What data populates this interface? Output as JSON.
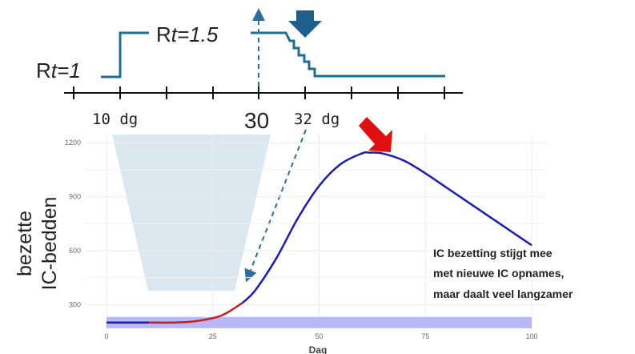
{
  "colors": {
    "rt_line": "#1f6f93",
    "arrow_top": "#1f5f8c",
    "dashed_arrow": "#2a6fa0",
    "curve_blue": "#1c1cb4",
    "curve_red": "#c0201f",
    "capacity_band": "#b8b8f4",
    "funnel": "#dce8f0",
    "red_arrow": "#e01010",
    "grid": "#ebebeb",
    "axis_text": "#6a6a6a",
    "text_dark": "#222222"
  },
  "timeline": {
    "rt1_prefix": "R",
    "rt1_italic": "t=1",
    "rt2_prefix": "R",
    "rt2_italic": "t=1.5",
    "label_10": "10 dg",
    "label_30": "30",
    "label_32": "32 dg"
  },
  "icons": {
    "top_arrow": "down-arrow-icon",
    "red_arrow": "down-arrow-icon"
  },
  "chart_data": {
    "type": "line",
    "ylabel_line1": "bezette",
    "ylabel_line2": "IC-bedden",
    "xlabel": "Dag",
    "xlim": [
      0,
      100
    ],
    "ylim": [
      150,
      1250
    ],
    "x_ticks": [
      0,
      25,
      50,
      75,
      100
    ],
    "x_tick_labels": [
      "0",
      "25",
      "50",
      "75",
      "100"
    ],
    "y_ticks": [
      300,
      600,
      900,
      1200
    ],
    "y_tick_labels": [
      "300",
      "600",
      "900",
      "1200"
    ],
    "capacity_level": 200,
    "annotation": {
      "line1": "IC bezetting stijgt mee",
      "line2": "met nieuwe IC opnames,",
      "line3": "maar daalt veel langzamer"
    },
    "series": [
      {
        "x": [
          0,
          5,
          10
        ],
        "y": [
          200,
          200,
          200
        ]
      },
      {
        "x": [
          10,
          15,
          20,
          25,
          28,
          32
        ],
        "y": [
          200,
          200,
          205,
          225,
          250,
          310
        ]
      },
      {
        "x": [
          32,
          35,
          40,
          45,
          50,
          55,
          60,
          62,
          65,
          70,
          75,
          80,
          85,
          90,
          95,
          100
        ],
        "y": [
          310,
          380,
          560,
          780,
          960,
          1080,
          1140,
          1145,
          1140,
          1100,
          1030,
          950,
          870,
          790,
          710,
          630
        ]
      }
    ]
  }
}
